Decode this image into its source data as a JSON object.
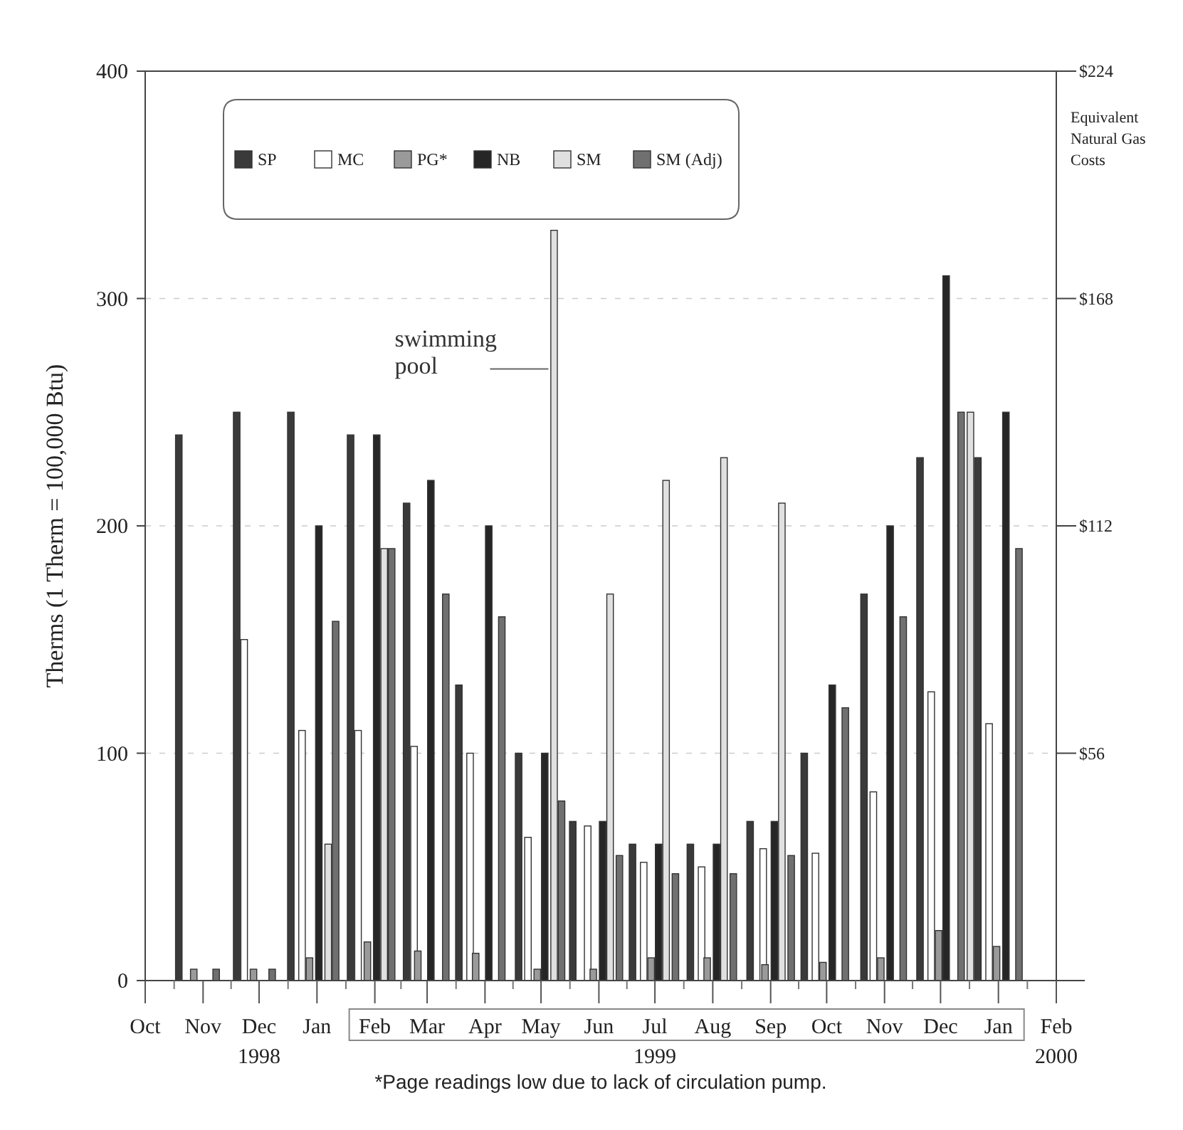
{
  "chart_data": {
    "type": "bar",
    "ylabel": "Therms (1 Therm = 100,000 Btu)",
    "y2label": "Equivalent Natural Gas Costs",
    "xlim": [
      "1998-10-01",
      "2000-02-01"
    ],
    "xticks": [
      {
        "value": "1998-10-01",
        "label": "Oct"
      },
      {
        "value": "1998-11-01",
        "label": "Nov"
      },
      {
        "value": "1998-12-01",
        "label": "Dec\n1998"
      },
      {
        "value": "1999-01-01",
        "label": "Jan"
      },
      {
        "value": "1999-02-01",
        "label": "Feb"
      },
      {
        "value": "1999-03-01",
        "label": "Mar"
      },
      {
        "value": "1999-04-01",
        "label": "Apr"
      },
      {
        "value": "1999-05-01",
        "label": "May"
      },
      {
        "value": "1999-06-01",
        "label": "Jun"
      },
      {
        "value": "1999-07-01",
        "label": "Jul\n1999"
      },
      {
        "value": "1999-08-01",
        "label": "Aug"
      },
      {
        "value": "1999-09-01",
        "label": "Sep"
      },
      {
        "value": "1999-10-01",
        "label": "Oct"
      },
      {
        "value": "1999-11-01",
        "label": "Nov"
      },
      {
        "value": "1999-12-01",
        "label": "Dec"
      },
      {
        "value": "2000-01-01",
        "label": "Jan"
      },
      {
        "value": "2000-02-01",
        "label": "Feb\n2000"
      }
    ],
    "ylim": [
      0,
      400
    ],
    "yticks": [
      0,
      100,
      200,
      300,
      400
    ],
    "y2lim": [
      0,
      224
    ],
    "y2ticks": [
      {
        "value": 56,
        "label": "$56"
      },
      {
        "value": 112,
        "label": "$112"
      },
      {
        "value": 168,
        "label": "$168"
      },
      {
        "value": 224,
        "label": "$224"
      }
    ],
    "grid": "y",
    "legend": "top left",
    "series": [
      {
        "name": "SP",
        "color": "#3a3a3a",
        "x": [
          "1998-10-19",
          "1998-11-19",
          "1998-12-18",
          "1999-01-19",
          "1999-02-18",
          "1999-03-18",
          "1999-04-19",
          "1999-05-18",
          "1999-06-19",
          "1999-07-20",
          "1999-08-21",
          "1999-09-19",
          "1999-10-21",
          "1999-11-20",
          "1999-12-21"
        ],
        "values": [
          240,
          250,
          250,
          240,
          210,
          130,
          100,
          70,
          60,
          60,
          70,
          100,
          170,
          230,
          230
        ]
      },
      {
        "name": "MC",
        "color": "#ffffff",
        "x": [
          "1998-11-23",
          "1998-12-24",
          "1999-01-23",
          "1999-02-22",
          "1999-03-24",
          "1999-04-24",
          "1999-05-26",
          "1999-06-25",
          "1999-07-26",
          "1999-08-28",
          "1999-09-25",
          "1999-10-26",
          "1999-11-26",
          "1999-12-27"
        ],
        "values": [
          150,
          110,
          110,
          103,
          100,
          63,
          68,
          52,
          50,
          58,
          56,
          83,
          127,
          113
        ]
      },
      {
        "name": "PG*",
        "color": "#9a9a9a",
        "x": [
          "1998-10-27",
          "1998-11-28",
          "1998-12-28",
          "1999-01-28",
          "1999-02-24",
          "1999-03-27",
          "1999-04-29",
          "1999-05-29",
          "1999-06-29",
          "1999-07-29",
          "1999-08-29",
          "1999-09-29",
          "1999-10-30",
          "1999-11-30",
          "1999-12-31"
        ],
        "values": [
          5,
          5,
          10,
          17,
          13,
          12,
          5,
          5,
          10,
          10,
          7,
          8,
          10,
          22,
          15
        ]
      },
      {
        "name": "NB",
        "color": "#262626",
        "x": [
          "1999-01-02",
          "1999-02-02",
          "1999-03-03",
          "1999-04-03",
          "1999-05-03",
          "1999-06-03",
          "1999-07-03",
          "1999-08-03",
          "1999-09-03",
          "1999-10-04",
          "1999-11-04",
          "1999-12-04",
          "2000-01-05"
        ],
        "values": [
          200,
          240,
          220,
          200,
          100,
          70,
          60,
          60,
          70,
          130,
          200,
          310,
          250
        ]
      },
      {
        "name": "SM",
        "color": "#e0e0e0",
        "x": [
          "1999-01-07",
          "1999-02-06",
          "1999-05-08",
          "1999-06-07",
          "1999-07-07",
          "1999-08-07",
          "1999-09-07",
          "1999-12-17"
        ],
        "values": [
          60,
          190,
          330,
          170,
          220,
          230,
          210,
          250
        ]
      },
      {
        "name": "SM (Adj)",
        "color": "#707070",
        "x": [
          "1998-11-08",
          "1998-12-08",
          "1999-01-11",
          "1999-02-10",
          "1999-03-11",
          "1999-04-10",
          "1999-05-12",
          "1999-06-12",
          "1999-07-12",
          "1999-08-12",
          "1999-09-12",
          "1999-10-11",
          "1999-11-11",
          "1999-12-12",
          "2000-01-12"
        ],
        "values": [
          5,
          5,
          158,
          190,
          170,
          160,
          79,
          55,
          47,
          47,
          55,
          120,
          160,
          250,
          190
        ]
      }
    ],
    "annotations": [
      {
        "text": "swimming pool",
        "x": "1999-05-08",
        "y": 269
      },
      "*Page readings low due to lack of circulation pump."
    ]
  }
}
